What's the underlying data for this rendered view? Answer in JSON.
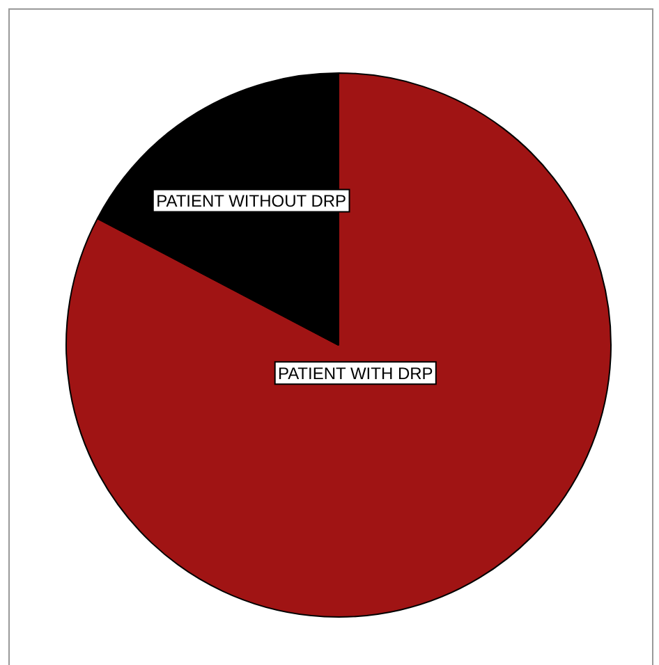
{
  "chart_data": {
    "type": "pie",
    "categories": [
      "PATIENT WITH DRP",
      "PATIENT WITHOUT DRP"
    ],
    "values": [
      82.7,
      17.3
    ],
    "colors": [
      "#a01414",
      "#000000"
    ],
    "legend": false
  }
}
